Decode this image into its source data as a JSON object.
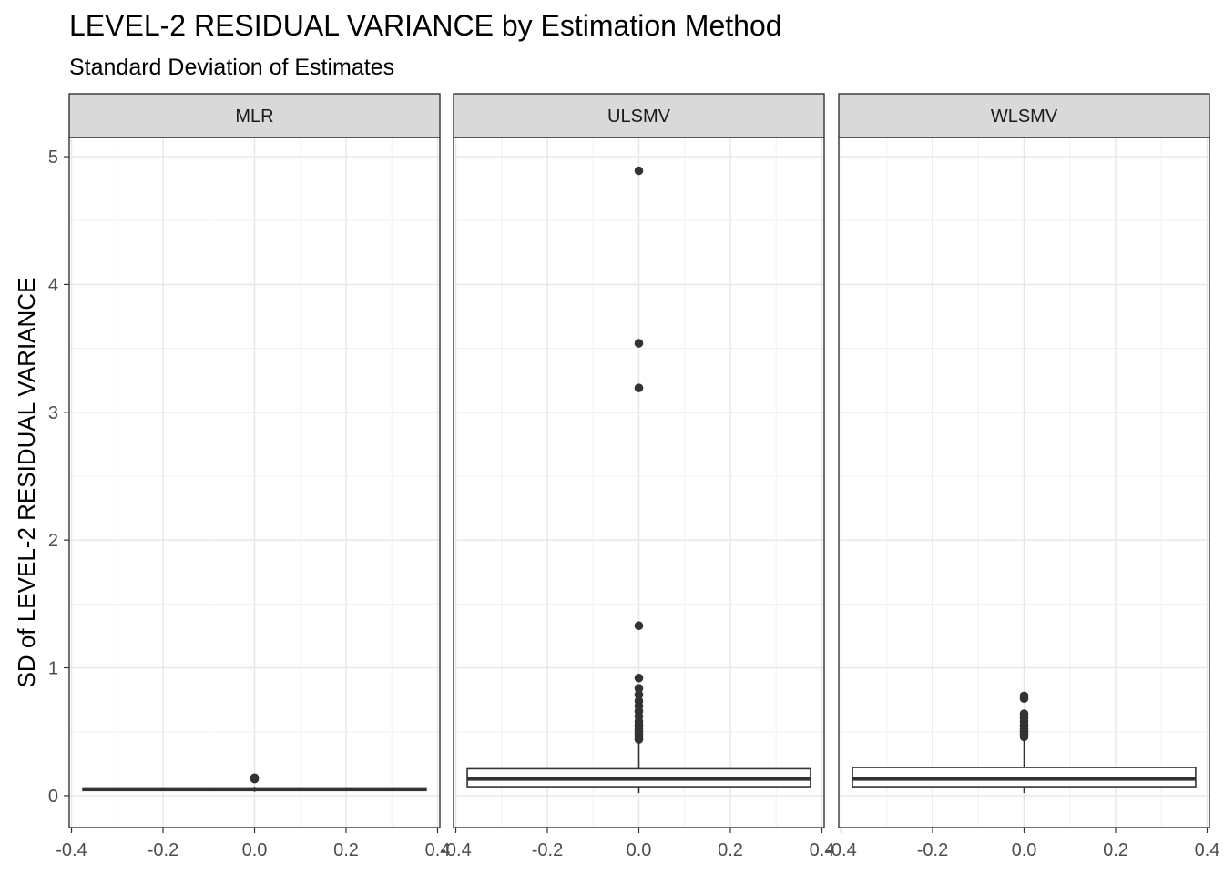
{
  "chart_data": {
    "type": "boxplot",
    "title": "LEVEL-2 RESIDUAL VARIANCE by Estimation Method",
    "subtitle": "Standard Deviation of Estimates",
    "ylabel": "SD of LEVEL-2 RESIDUAL VARIANCE",
    "xlabel": "",
    "ylim": [
      -0.25,
      5.15
    ],
    "y_ticks": [
      0,
      1,
      2,
      3,
      4,
      5
    ],
    "y_tick_labels": [
      "0",
      "1",
      "2",
      "3",
      "4",
      "5"
    ],
    "xlim": [
      -0.405,
      0.405
    ],
    "x_ticks": [
      -0.4,
      -0.2,
      0.0,
      0.2,
      0.4
    ],
    "x_tick_labels": [
      "-0.4",
      "-0.2",
      "0.0",
      "0.2",
      "0.4"
    ],
    "grid": true,
    "theme": "black-and-white",
    "box_color": "#333333",
    "strip_fill": "#d9d9d9",
    "panels": [
      {
        "label": "MLR",
        "box": {
          "lower_whisker": 0.03,
          "q1": 0.04,
          "median": 0.05,
          "q3": 0.06,
          "upper_whisker": 0.07
        },
        "outliers": [
          0.13,
          0.14
        ]
      },
      {
        "label": "ULSMV",
        "box": {
          "lower_whisker": 0.02,
          "q1": 0.07,
          "median": 0.13,
          "q3": 0.21,
          "upper_whisker": 0.42
        },
        "outliers": [
          0.44,
          0.46,
          0.48,
          0.5,
          0.52,
          0.55,
          0.58,
          0.62,
          0.66,
          0.7,
          0.74,
          0.79,
          0.84,
          0.92,
          1.33,
          3.19,
          3.54,
          4.89
        ]
      },
      {
        "label": "WLSMV",
        "box": {
          "lower_whisker": 0.02,
          "q1": 0.07,
          "median": 0.13,
          "q3": 0.22,
          "upper_whisker": 0.44
        },
        "outliers": [
          0.46,
          0.48,
          0.5,
          0.52,
          0.55,
          0.58,
          0.61,
          0.64,
          0.76,
          0.78
        ]
      }
    ]
  }
}
